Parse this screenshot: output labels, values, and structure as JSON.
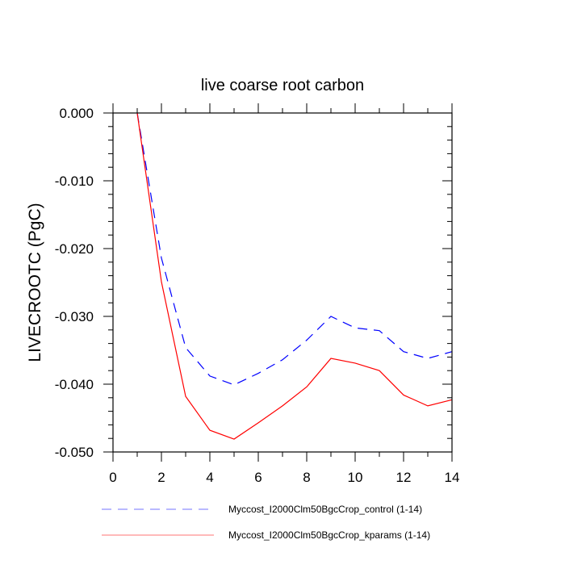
{
  "chart_data": {
    "type": "line",
    "title": "live coarse root carbon",
    "xlabel": "",
    "ylabel": "LIVECROOTC  (PgC)",
    "xlim": [
      0,
      14
    ],
    "ylim": [
      -0.05,
      0.0
    ],
    "x_ticks": [
      "0",
      "2",
      "4",
      "6",
      "8",
      "10",
      "12",
      "14"
    ],
    "y_ticks": [
      "0.000",
      "-0.010",
      "-0.020",
      "-0.030",
      "-0.040",
      "-0.050"
    ],
    "grid": false,
    "legend_position": "bottom",
    "x": [
      1,
      2,
      3,
      4,
      5,
      6,
      7,
      8,
      9,
      10,
      11,
      12,
      13,
      14
    ],
    "series": [
      {
        "name": "Myccost_I2000Clm50BgcCrop_control (1-14)",
        "color": "#0000ff",
        "style": "dashed",
        "values": [
          0.0,
          -0.0214,
          -0.0346,
          -0.0388,
          -0.0401,
          -0.0384,
          -0.0364,
          -0.0335,
          -0.03,
          -0.0317,
          -0.0321,
          -0.0352,
          -0.0362,
          -0.0352
        ]
      },
      {
        "name": "Myccost_I2000Clm50BgcCrop_kparams (1-14)",
        "color": "#ff0000",
        "style": "solid",
        "values": [
          0.0,
          -0.0249,
          -0.0418,
          -0.0468,
          -0.0481,
          -0.0457,
          -0.0432,
          -0.0404,
          -0.0362,
          -0.0369,
          -0.038,
          -0.0416,
          -0.0432,
          -0.0423
        ]
      }
    ]
  }
}
